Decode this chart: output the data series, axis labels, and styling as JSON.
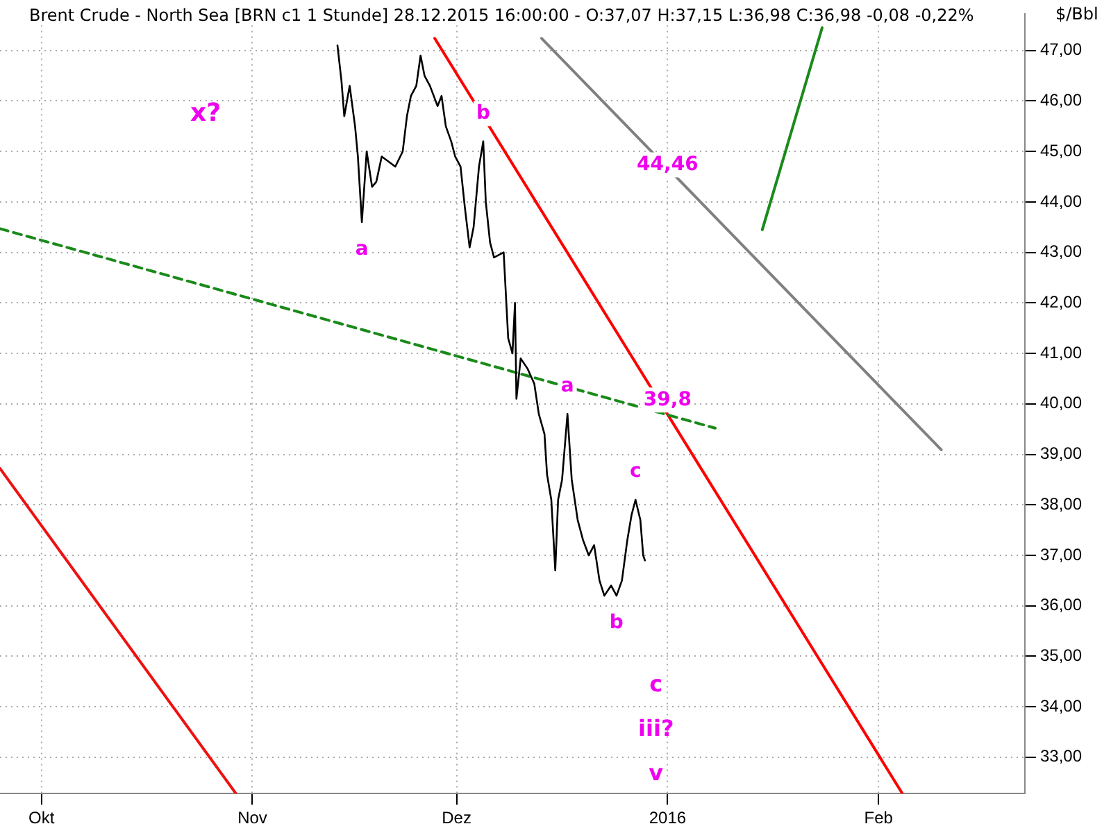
{
  "chart_data": {
    "type": "line",
    "title": "Brent Crude - North Sea [BRN c1 1 Stunde]",
    "subtitle": "28.12.2015 16:00:00 - O:37,07 H:37,15 L:36,98 C:36,98 -0,08 -0,22%",
    "ylabel": "$/Bbl",
    "xlim": [
      "2015-09-24T22:00",
      "2016-02-22T12:00"
    ],
    "xticks": [
      {
        "value": "2015-10-01",
        "label": "Okt"
      },
      {
        "value": "2015-11-01",
        "label": "Nov"
      },
      {
        "value": "2015-12-01",
        "label": "Dez"
      },
      {
        "value": "2016-01-01",
        "label": "2016"
      },
      {
        "value": "2016-02-01",
        "label": "Feb"
      }
    ],
    "ylim": [
      32.28,
      47.72
    ],
    "yticks": [
      {
        "value": 33,
        "label": "33,00"
      },
      {
        "value": 34,
        "label": "34,00"
      },
      {
        "value": 35,
        "label": "35,00"
      },
      {
        "value": 36,
        "label": "36,00"
      },
      {
        "value": 37,
        "label": "37,00"
      },
      {
        "value": 38,
        "label": "38,00"
      },
      {
        "value": 39,
        "label": "39,00"
      },
      {
        "value": 40,
        "label": "40,00"
      },
      {
        "value": 41,
        "label": "41,00"
      },
      {
        "value": 42,
        "label": "42,00"
      },
      {
        "value": 43,
        "label": "43,00"
      },
      {
        "value": 44,
        "label": "44,00"
      },
      {
        "value": 45,
        "label": "45,00"
      },
      {
        "value": 46,
        "label": "46,00"
      },
      {
        "value": 47,
        "label": "47,00"
      }
    ],
    "grid": true,
    "legend": false,
    "marker": "none",
    "series": [
      {
        "color": "#000000",
        "line_style": "solid",
        "x": [
          "2015-11-13T12:00",
          "2015-11-14T02:00",
          "2015-11-14T12:00",
          "2015-11-15T07:00",
          "2015-11-16T02:00",
          "2015-11-16T12:00",
          "2015-11-17T02:00",
          "2015-11-17T19:00",
          "2015-11-18T14:00",
          "2015-11-19T05:00",
          "2015-11-20T00:00",
          "2015-11-21T00:00",
          "2015-11-22T00:00",
          "2015-11-23T02:00",
          "2015-11-23T17:00",
          "2015-11-24T07:00",
          "2015-11-25T02:00",
          "2015-11-25T17:00",
          "2015-11-26T07:00",
          "2015-11-27T02:00",
          "2015-11-28T05:00",
          "2015-11-28T19:00",
          "2015-11-29T10:00",
          "2015-11-30T05:00",
          "2015-11-30T19:00",
          "2015-12-01T14:00",
          "2015-12-02T05:00",
          "2015-12-02T22:00",
          "2015-12-03T12:00",
          "2015-12-04T07:00",
          "2015-12-04T22:00",
          "2015-12-05T07:00",
          "2015-12-05T22:00",
          "2015-12-06T12:00",
          "2015-12-07T22:00",
          "2015-12-08T14:00",
          "2015-12-09T05:00",
          "2015-12-09T14:00",
          "2015-12-09T19:00",
          "2015-12-10T10:00",
          "2015-12-11T10:00",
          "2015-12-12T10:00",
          "2015-12-13T02:00",
          "2015-12-13T22:00",
          "2015-12-14T07:00",
          "2015-12-14T22:00",
          "2015-12-15T12:00",
          "2015-12-15T22:00",
          "2015-12-16T12:00",
          "2015-12-17T07:00",
          "2015-12-17T22:00",
          "2015-12-18T19:00",
          "2015-12-19T14:00",
          "2015-12-20T10:00",
          "2015-12-21T05:00",
          "2015-12-22T00:00",
          "2015-12-22T17:00",
          "2015-12-23T17:00",
          "2015-12-24T12:00",
          "2015-12-25T07:00",
          "2015-12-26T02:00",
          "2015-12-26T17:00",
          "2015-12-27T07:00",
          "2015-12-28T00:00",
          "2015-12-28T10:00",
          "2015-12-28T16:00"
        ],
        "values": [
          47.1,
          46.4,
          45.7,
          46.3,
          45.5,
          44.9,
          43.6,
          45.0,
          44.3,
          44.4,
          44.9,
          44.8,
          44.7,
          45.0,
          45.7,
          46.1,
          46.3,
          46.9,
          46.5,
          46.3,
          45.9,
          46.1,
          45.5,
          45.2,
          44.9,
          44.7,
          43.9,
          43.1,
          43.5,
          44.7,
          45.2,
          44.0,
          43.2,
          42.9,
          43.0,
          41.3,
          41.0,
          42.0,
          40.1,
          40.9,
          40.7,
          40.4,
          39.8,
          39.4,
          38.6,
          38.1,
          36.7,
          38.1,
          38.5,
          39.8,
          38.5,
          37.7,
          37.3,
          37.0,
          37.2,
          36.5,
          36.2,
          36.4,
          36.2,
          36.5,
          37.3,
          37.8,
          38.1,
          37.7,
          37.0,
          36.9
        ]
      },
      {
        "color": "#1a8a1a",
        "line_style": "dashed",
        "x": [
          "2015-09-24T22:00",
          "2016-01-08T00:00"
        ],
        "values": [
          43.47,
          39.52
        ]
      },
      {
        "color": "#ff0000",
        "line_style": "solid",
        "x": [
          "2015-11-27T19:00",
          "2016-02-04T12:00"
        ],
        "values": [
          47.24,
          32.28
        ]
      },
      {
        "color": "#808080",
        "line_style": "solid",
        "x": [
          "2015-12-13T12:00",
          "2016-02-10T05:00"
        ],
        "values": [
          47.24,
          39.09
        ]
      },
      {
        "color": "#1a8a1a",
        "line_style": "solid",
        "x": [
          "2016-01-14T22:00",
          "2016-01-23T17:00"
        ],
        "values": [
          43.45,
          47.45
        ]
      },
      {
        "color": "#ee1111",
        "line_style": "solid",
        "x": [
          "2015-09-24T22:00",
          "2015-10-29T14:00"
        ],
        "values": [
          38.72,
          32.28
        ]
      }
    ],
    "annotations": [
      "x?",
      {
        "text": "a",
        "x": "2015-11-17T02:00",
        "y": 43.6
      },
      {
        "text": "b",
        "x": "2015-12-04T22:00",
        "y": 45.2
      },
      {
        "text": "44,46",
        "x": "2016-01-01",
        "y": 44.46
      },
      {
        "text": "a",
        "x": "2015-12-17T07:00",
        "y": 39.8
      },
      {
        "text": "39,8",
        "x": "2016-01-01",
        "y": 39.8
      },
      {
        "text": "c",
        "x": "2015-12-27T07:00",
        "y": 38.1
      },
      {
        "text": "b",
        "x": "2015-12-24T12:00",
        "y": 36.2
      },
      "c",
      "iii?",
      "v"
    ]
  }
}
